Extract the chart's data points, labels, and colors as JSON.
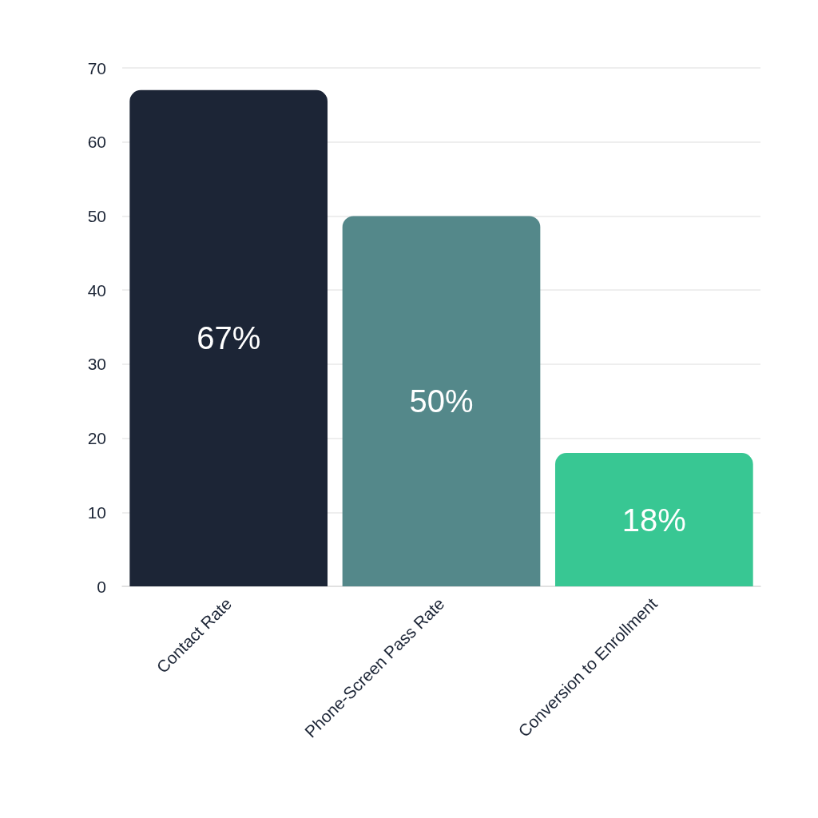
{
  "chart_data": {
    "type": "bar",
    "categories": [
      "Contact Rate",
      "Phone-Screen Pass Rate",
      "Conversion to Enrollment"
    ],
    "values": [
      67,
      50,
      18
    ],
    "colors": [
      "#1c2536",
      "#54888a",
      "#38c793"
    ],
    "value_labels": [
      "67%",
      "50%",
      "18%"
    ],
    "ylim": [
      0,
      70
    ],
    "yticks": [
      0,
      10,
      20,
      30,
      40,
      50,
      60,
      70
    ],
    "grid": "y"
  }
}
